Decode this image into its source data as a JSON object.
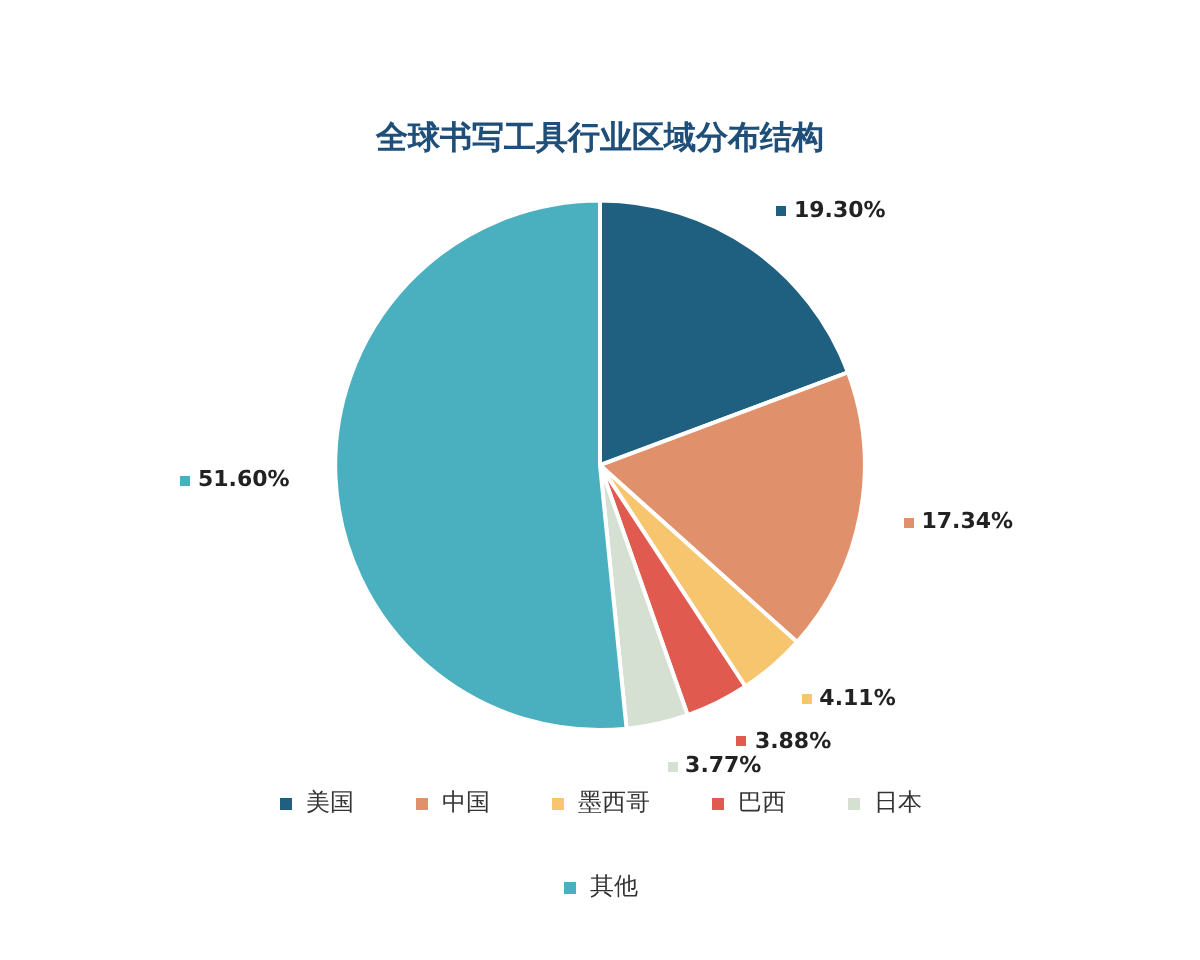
{
  "chart_data": {
    "type": "pie",
    "title": "全球书写工具行业区域分布结构",
    "categories": [
      "美国",
      "中国",
      "墨西哥",
      "巴西",
      "日本",
      "其他"
    ],
    "values": [
      19.3,
      17.34,
      4.11,
      3.88,
      3.77,
      51.6
    ],
    "colors": [
      "#1f5f7f",
      "#e0906a",
      "#f7c56e",
      "#e05a4f",
      "#d6e0d2",
      "#4aafbf"
    ],
    "value_labels": [
      "19.30%",
      "17.34%",
      "4.11%",
      "3.88%",
      "3.77%",
      "51.60%"
    ],
    "legend": "bottom"
  }
}
